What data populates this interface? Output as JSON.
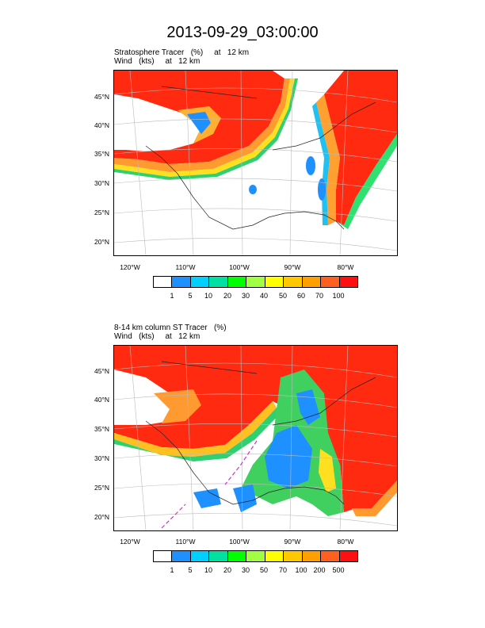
{
  "title": "2013-09-29_03:00:00",
  "colors": [
    "#ffffff",
    "#1e90ff",
    "#00d0ff",
    "#00e0a0",
    "#00ff00",
    "#a0ff40",
    "#ffff00",
    "#ffc800",
    "#ffa000",
    "#ff6020",
    "#ff1010"
  ],
  "panels": [
    {
      "line1": "Stratosphere Tracer   (%)     at   12 km",
      "line2": "Wind   (kts)     at   12 km",
      "lat_labels": [
        "45°N",
        "40°N",
        "35°N",
        "30°N",
        "25°N",
        "20°N"
      ],
      "lon_labels": [
        "120°W",
        "110°W",
        "100°W",
        "90°W",
        "80°W"
      ],
      "colorbar_labels": [
        "1",
        "5",
        "10",
        "20",
        "30",
        "40",
        "50",
        "60",
        "70",
        "100"
      ]
    },
    {
      "line1": "8-14 km column ST Tracer   (%)",
      "line2": "Wind   (kts)     at   12 km",
      "lat_labels": [
        "45°N",
        "40°N",
        "35°N",
        "30°N",
        "25°N",
        "20°N"
      ],
      "lon_labels": [
        "120°W",
        "110°W",
        "100°W",
        "90°W",
        "80°W"
      ],
      "colorbar_labels": [
        "1",
        "5",
        "10",
        "20",
        "30",
        "50",
        "70",
        "100",
        "200",
        "500"
      ]
    }
  ]
}
